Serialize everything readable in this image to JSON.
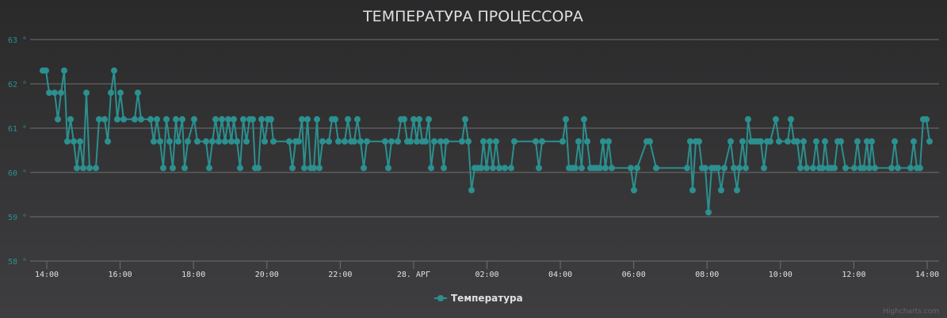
{
  "chart": {
    "title": "ТЕМПЕРАТУРА ПРОЦЕССОРА",
    "legend": {
      "label": "Температура"
    },
    "credits": "Highcharts.com",
    "colors": {
      "series": "#2b908f",
      "grid": "#707073",
      "title": "#e0e0e3",
      "axis_label": "#e0e0e3",
      "y_label": "#2b908f"
    }
  },
  "chart_data": {
    "type": "line",
    "title": "ТЕМПЕРАТУРА ПРОЦЕССОРА",
    "xlabel": "",
    "ylabel": "",
    "ylim": [
      58,
      63
    ],
    "y_ticks": [
      "58 °",
      "59 °",
      "60 °",
      "61 °",
      "62 °",
      "63 °"
    ],
    "x_ticks": [
      "14:00",
      "16:00",
      "18:00",
      "20:00",
      "22:00",
      "28. АРГ",
      "02:00",
      "04:00",
      "06:00",
      "08:00",
      "10:00",
      "12:00",
      "14:00"
    ],
    "grid": true,
    "legend_position": "bottom-center",
    "series": [
      {
        "name": "Температура",
        "color": "#2b908f",
        "points": [
          [
            54,
            62.3
          ],
          [
            58,
            62.3
          ],
          [
            62,
            61.8
          ],
          [
            69,
            61.8
          ],
          [
            73,
            61.2
          ],
          [
            77,
            61.8
          ],
          [
            81,
            62.3
          ],
          [
            85,
            60.7
          ],
          [
            89,
            61.2
          ],
          [
            93,
            60.7
          ],
          [
            97,
            60.1
          ],
          [
            101,
            60.7
          ],
          [
            105,
            60.1
          ],
          [
            109,
            61.8
          ],
          [
            113,
            60.1
          ],
          [
            121,
            60.1
          ],
          [
            125,
            61.2
          ],
          [
            132,
            61.2
          ],
          [
            136,
            60.7
          ],
          [
            140,
            61.8
          ],
          [
            144,
            62.3
          ],
          [
            148,
            61.2
          ],
          [
            152,
            61.8
          ],
          [
            156,
            61.2
          ],
          [
            170,
            61.2
          ],
          [
            174,
            61.8
          ],
          [
            178,
            61.2
          ],
          [
            190,
            61.2
          ],
          [
            194,
            60.7
          ],
          [
            198,
            61.2
          ],
          [
            202,
            60.7
          ],
          [
            206,
            60.1
          ],
          [
            210,
            61.2
          ],
          [
            214,
            60.7
          ],
          [
            218,
            60.1
          ],
          [
            222,
            61.2
          ],
          [
            225,
            60.7
          ],
          [
            230,
            61.2
          ],
          [
            233,
            60.1
          ],
          [
            237,
            60.7
          ],
          [
            245,
            61.2
          ],
          [
            249,
            60.7
          ],
          [
            260,
            60.7
          ],
          [
            264,
            60.1
          ],
          [
            268,
            60.7
          ],
          [
            272,
            61.2
          ],
          [
            276,
            60.7
          ],
          [
            280,
            61.2
          ],
          [
            284,
            60.7
          ],
          [
            288,
            61.2
          ],
          [
            292,
            60.7
          ],
          [
            295,
            61.2
          ],
          [
            299,
            60.7
          ],
          [
            303,
            60.1
          ],
          [
            307,
            61.2
          ],
          [
            311,
            60.7
          ],
          [
            315,
            61.2
          ],
          [
            319,
            61.2
          ],
          [
            322,
            60.1
          ],
          [
            326,
            60.1
          ],
          [
            330,
            61.2
          ],
          [
            334,
            60.7
          ],
          [
            338,
            61.2
          ],
          [
            342,
            61.2
          ],
          [
            345,
            60.7
          ],
          [
            365,
            60.7
          ],
          [
            369,
            60.1
          ],
          [
            373,
            60.7
          ],
          [
            377,
            60.7
          ],
          [
            381,
            61.2
          ],
          [
            384,
            60.1
          ],
          [
            388,
            61.2
          ],
          [
            392,
            60.1
          ],
          [
            396,
            60.1
          ],
          [
            400,
            61.2
          ],
          [
            403,
            60.1
          ],
          [
            407,
            60.7
          ],
          [
            415,
            60.7
          ],
          [
            419,
            61.2
          ],
          [
            423,
            61.2
          ],
          [
            427,
            60.7
          ],
          [
            435,
            60.7
          ],
          [
            439,
            61.2
          ],
          [
            443,
            60.7
          ],
          [
            447,
            60.7
          ],
          [
            451,
            61.2
          ],
          [
            455,
            60.7
          ],
          [
            459,
            60.1
          ],
          [
            463,
            60.7
          ],
          [
            486,
            60.7
          ],
          [
            490,
            60.1
          ],
          [
            494,
            60.7
          ],
          [
            502,
            60.7
          ],
          [
            506,
            61.2
          ],
          [
            510,
            61.2
          ],
          [
            514,
            60.7
          ],
          [
            518,
            60.7
          ],
          [
            522,
            61.2
          ],
          [
            526,
            60.7
          ],
          [
            529,
            61.2
          ],
          [
            533,
            60.7
          ],
          [
            537,
            60.7
          ],
          [
            541,
            61.2
          ],
          [
            544,
            60.1
          ],
          [
            548,
            60.7
          ],
          [
            556,
            60.7
          ],
          [
            560,
            60.1
          ],
          [
            563,
            60.7
          ],
          [
            583,
            60.7
          ],
          [
            587,
            61.2
          ],
          [
            591,
            60.7
          ],
          [
            595,
            59.6
          ],
          [
            599,
            60.1
          ],
          [
            603,
            60.1
          ],
          [
            607,
            60.1
          ],
          [
            610,
            60.7
          ],
          [
            614,
            60.1
          ],
          [
            618,
            60.7
          ],
          [
            622,
            60.1
          ],
          [
            626,
            60.7
          ],
          [
            630,
            60.1
          ],
          [
            637,
            60.1
          ],
          [
            645,
            60.1
          ],
          [
            649,
            60.7
          ],
          [
            676,
            60.7
          ],
          [
            680,
            60.1
          ],
          [
            684,
            60.7
          ],
          [
            710,
            60.7
          ],
          [
            714,
            61.2
          ],
          [
            718,
            60.1
          ],
          [
            722,
            60.1
          ],
          [
            726,
            60.1
          ],
          [
            730,
            60.7
          ],
          [
            734,
            60.1
          ],
          [
            737,
            61.2
          ],
          [
            741,
            60.7
          ],
          [
            745,
            60.1
          ],
          [
            749,
            60.1
          ],
          [
            753,
            60.1
          ],
          [
            757,
            60.1
          ],
          [
            761,
            60.7
          ],
          [
            764,
            60.1
          ],
          [
            768,
            60.7
          ],
          [
            772,
            60.1
          ],
          [
            796,
            60.1
          ],
          [
            800,
            59.6
          ],
          [
            804,
            60.1
          ],
          [
            816,
            60.7
          ],
          [
            820,
            60.7
          ],
          [
            828,
            60.1
          ],
          [
            867,
            60.1
          ],
          [
            871,
            60.7
          ],
          [
            874,
            59.6
          ],
          [
            878,
            60.7
          ],
          [
            882,
            60.7
          ],
          [
            886,
            60.1
          ],
          [
            890,
            60.1
          ],
          [
            894,
            59.1
          ],
          [
            898,
            60.1
          ],
          [
            902,
            60.1
          ],
          [
            906,
            60.1
          ],
          [
            910,
            59.6
          ],
          [
            914,
            60.1
          ],
          [
            922,
            60.7
          ],
          [
            926,
            60.1
          ],
          [
            930,
            59.6
          ],
          [
            933,
            60.1
          ],
          [
            937,
            60.7
          ],
          [
            941,
            60.1
          ],
          [
            944,
            61.2
          ],
          [
            948,
            60.7
          ],
          [
            952,
            60.7
          ],
          [
            956,
            60.7
          ],
          [
            960,
            60.7
          ],
          [
            964,
            60.1
          ],
          [
            968,
            60.7
          ],
          [
            972,
            60.7
          ],
          [
            979,
            61.2
          ],
          [
            983,
            60.7
          ],
          [
            994,
            60.7
          ],
          [
            998,
            61.2
          ],
          [
            1002,
            60.7
          ],
          [
            1006,
            60.7
          ],
          [
            1010,
            60.1
          ],
          [
            1014,
            60.7
          ],
          [
            1018,
            60.1
          ],
          [
            1026,
            60.1
          ],
          [
            1030,
            60.7
          ],
          [
            1034,
            60.1
          ],
          [
            1038,
            60.1
          ],
          [
            1041,
            60.7
          ],
          [
            1045,
            60.1
          ],
          [
            1049,
            60.1
          ],
          [
            1053,
            60.1
          ],
          [
            1057,
            60.7
          ],
          [
            1061,
            60.7
          ],
          [
            1067,
            60.1
          ],
          [
            1078,
            60.1
          ],
          [
            1082,
            60.7
          ],
          [
            1086,
            60.1
          ],
          [
            1090,
            60.1
          ],
          [
            1094,
            60.7
          ],
          [
            1097,
            60.1
          ],
          [
            1100,
            60.7
          ],
          [
            1104,
            60.1
          ],
          [
            1125,
            60.1
          ],
          [
            1129,
            60.7
          ],
          [
            1133,
            60.1
          ],
          [
            1149,
            60.1
          ],
          [
            1153,
            60.7
          ],
          [
            1157,
            60.1
          ],
          [
            1161,
            60.1
          ],
          [
            1165,
            61.2
          ],
          [
            1169,
            61.2
          ],
          [
            1173,
            60.7
          ]
        ]
      }
    ]
  }
}
